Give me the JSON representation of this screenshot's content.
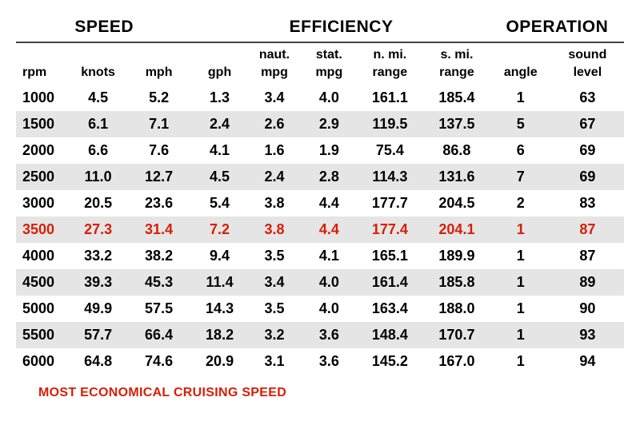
{
  "colors": {
    "highlight": "#d81e05",
    "header_rule": "#444444",
    "row_even_bg": "#ffffff",
    "row_odd_bg": "#e5e5e5",
    "text": "#000000",
    "background": "#ffffff"
  },
  "typography": {
    "group_header_fontsize": 21,
    "subheader_fontsize": 16,
    "cell_fontsize": 18,
    "footer_fontsize": 16,
    "font_family": "Arial, Helvetica, sans-serif",
    "font_weight": "bold"
  },
  "table": {
    "type": "table",
    "group_headers": [
      "SPEED",
      "EFFICIENCY",
      "OPERATION"
    ],
    "group_spans": [
      3,
      5,
      2
    ],
    "subheaders_line1": [
      "",
      "",
      "",
      "",
      "naut.",
      "stat.",
      "n. mi.",
      "s. mi.",
      "",
      "sound"
    ],
    "subheaders_line2": [
      "rpm",
      "knots",
      "mph",
      "gph",
      "mpg",
      "mpg",
      "range",
      "range",
      "angle",
      "level"
    ],
    "columns": [
      "rpm",
      "knots",
      "mph",
      "gph",
      "naut_mpg",
      "stat_mpg",
      "n_mi_range",
      "s_mi_range",
      "angle",
      "sound_level"
    ],
    "column_widths_pct": [
      9,
      9,
      11,
      9,
      9,
      9,
      11,
      11,
      10,
      12
    ],
    "highlight_row_index": 5,
    "rows": [
      [
        "1000",
        "4.5",
        "5.2",
        "1.3",
        "3.4",
        "4.0",
        "161.1",
        "185.4",
        "1",
        "63"
      ],
      [
        "1500",
        "6.1",
        "7.1",
        "2.4",
        "2.6",
        "2.9",
        "119.5",
        "137.5",
        "5",
        "67"
      ],
      [
        "2000",
        "6.6",
        "7.6",
        "4.1",
        "1.6",
        "1.9",
        "75.4",
        "86.8",
        "6",
        "69"
      ],
      [
        "2500",
        "11.0",
        "12.7",
        "4.5",
        "2.4",
        "2.8",
        "114.3",
        "131.6",
        "7",
        "69"
      ],
      [
        "3000",
        "20.5",
        "23.6",
        "5.4",
        "3.8",
        "4.4",
        "177.7",
        "204.5",
        "2",
        "83"
      ],
      [
        "3500",
        "27.3",
        "31.4",
        "7.2",
        "3.8",
        "4.4",
        "177.4",
        "204.1",
        "1",
        "87"
      ],
      [
        "4000",
        "33.2",
        "38.2",
        "9.4",
        "3.5",
        "4.1",
        "165.1",
        "189.9",
        "1",
        "87"
      ],
      [
        "4500",
        "39.3",
        "45.3",
        "11.4",
        "3.4",
        "4.0",
        "161.4",
        "185.8",
        "1",
        "89"
      ],
      [
        "5000",
        "49.9",
        "57.5",
        "14.3",
        "3.5",
        "4.0",
        "163.4",
        "188.0",
        "1",
        "90"
      ],
      [
        "5500",
        "57.7",
        "66.4",
        "18.2",
        "3.2",
        "3.6",
        "148.4",
        "170.7",
        "1",
        "93"
      ],
      [
        "6000",
        "64.8",
        "74.6",
        "20.9",
        "3.1",
        "3.6",
        "145.2",
        "167.0",
        "1",
        "94"
      ]
    ]
  },
  "footer_label": "MOST ECONOMICAL CRUISING SPEED"
}
